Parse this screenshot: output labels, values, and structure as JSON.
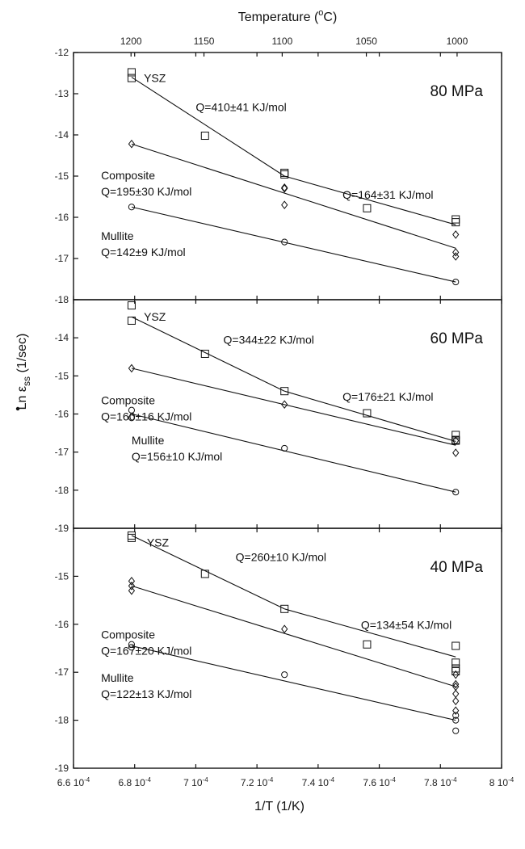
{
  "chart_data": {
    "type": "scatter",
    "top_axis": {
      "label": "Temperature (",
      "label_sup": "o",
      "label_end": "C)",
      "ticks": [
        1200,
        1150,
        1100,
        1050,
        1000
      ]
    },
    "x_axis": {
      "label": "1/T (1/K)",
      "range": [
        0.00066,
        0.0008
      ],
      "ticks": [
        0.00066,
        0.00068,
        0.0007,
        0.00072,
        0.00074,
        0.00076,
        0.00078,
        0.0008
      ],
      "tick_labels": [
        {
          "mant": "6.6",
          "exp": "-4"
        },
        {
          "mant": "6.8",
          "exp": "-4"
        },
        {
          "mant": "7",
          "exp": "-4"
        },
        {
          "mant": "7.2",
          "exp": "-4"
        },
        {
          "mant": "7.4",
          "exp": "-4"
        },
        {
          "mant": "7.6",
          "exp": "-4"
        },
        {
          "mant": "7.8",
          "exp": "-4"
        },
        {
          "mant": "8",
          "exp": "-4"
        }
      ]
    },
    "y_axis": {
      "label_prefix": "Ln ",
      "label_symbol": "ε",
      "label_sub": "ss",
      "label_suffix": " (1/sec)"
    },
    "panels": [
      {
        "label": "80 MPa",
        "ylim": [
          -18,
          -12
        ],
        "yticks": [
          -12,
          -13,
          -14,
          -15,
          -16,
          -17,
          -18
        ],
        "series": [
          {
            "name": "YSZ",
            "marker": "square",
            "points": [
              [
                0.000679,
                -12.48
              ],
              [
                0.000679,
                -12.62
              ],
              [
                0.000703,
                -14.02
              ],
              [
                0.000729,
                -14.92
              ],
              [
                0.000729,
                -14.96
              ],
              [
                0.000756,
                -15.78
              ],
              [
                0.000785,
                -16.05
              ],
              [
                0.000785,
                -16.12
              ]
            ],
            "fits": [
              [
                [
                  0.000679,
                  -12.6
                ],
                [
                  0.000729,
                  -15.0
                ]
              ],
              [
                [
                  0.000729,
                  -15.0
                ],
                [
                  0.000785,
                  -16.18
                ]
              ]
            ]
          },
          {
            "name": "Composite",
            "marker": "diamond",
            "points": [
              [
                0.000679,
                -14.22
              ],
              [
                0.000729,
                -15.28
              ],
              [
                0.000729,
                -15.3
              ],
              [
                0.000729,
                -15.7
              ],
              [
                0.000785,
                -16.42
              ],
              [
                0.000785,
                -16.85
              ],
              [
                0.000785,
                -16.95
              ]
            ],
            "fits": [
              [
                [
                  0.000679,
                  -14.22
                ],
                [
                  0.000785,
                  -16.75
                ]
              ]
            ]
          },
          {
            "name": "Mullite",
            "marker": "circle",
            "points": [
              [
                0.000679,
                -15.75
              ],
              [
                0.000729,
                -16.6
              ],
              [
                0.000785,
                -17.57
              ]
            ],
            "fits": [
              [
                [
                  0.000679,
                  -15.75
                ],
                [
                  0.000785,
                  -17.57
                ]
              ]
            ]
          }
        ],
        "annotations": [
          {
            "lines": [
              "YSZ"
            ],
            "x": 0.000683,
            "y": -12.72
          },
          {
            "lines": [
              "Q=410±41  KJ/mol"
            ],
            "x": 0.0007,
            "y": -13.42
          },
          {
            "lines": [
              "Composite",
              "Q=195±30 KJ/mol"
            ],
            "x": 0.000669,
            "y": -15.08
          },
          {
            "lines": [
              "Q=164±31 KJ/mol"
            ],
            "x": 0.000748,
            "y": -15.55
          },
          {
            "lines": [
              "Mullite",
              "Q=142±9 KJ/mol"
            ],
            "x": 0.000669,
            "y": -16.55
          }
        ]
      },
      {
        "label": "60 MPa",
        "ylim": [
          -19,
          -13
        ],
        "yticks": [
          -14,
          -15,
          -16,
          -17,
          -18,
          -19
        ],
        "series": [
          {
            "name": "YSZ",
            "marker": "square",
            "points": [
              [
                0.000679,
                -13.15
              ],
              [
                0.000679,
                -13.55
              ],
              [
                0.000703,
                -14.42
              ],
              [
                0.000729,
                -15.4
              ],
              [
                0.000756,
                -15.98
              ],
              [
                0.000785,
                -16.55
              ],
              [
                0.000785,
                -16.68
              ],
              [
                0.000785,
                -16.7
              ]
            ],
            "fits": [
              [
                [
                  0.000679,
                  -13.45
                ],
                [
                  0.000729,
                  -15.4
                ]
              ],
              [
                [
                  0.000729,
                  -15.4
                ],
                [
                  0.000785,
                  -16.72
                ]
              ]
            ]
          },
          {
            "name": "Composite",
            "marker": "diamond",
            "points": [
              [
                0.000679,
                -14.8
              ],
              [
                0.000729,
                -15.75
              ],
              [
                0.000785,
                -16.7
              ],
              [
                0.000785,
                -17.02
              ]
            ],
            "fits": [
              [
                [
                  0.000679,
                  -14.8
                ],
                [
                  0.000785,
                  -16.82
                ]
              ]
            ]
          },
          {
            "name": "Mullite",
            "marker": "circle",
            "points": [
              [
                0.000679,
                -15.9
              ],
              [
                0.000679,
                -16.1
              ],
              [
                0.000729,
                -16.9
              ],
              [
                0.000785,
                -18.05
              ]
            ],
            "fits": [
              [
                [
                  0.000679,
                  -16.0
                ],
                [
                  0.000785,
                  -18.05
                ]
              ]
            ]
          }
        ],
        "annotations": [
          {
            "lines": [
              "YSZ"
            ],
            "x": 0.000683,
            "y": -13.55
          },
          {
            "lines": [
              "Q=344±22 KJ/mol"
            ],
            "x": 0.000709,
            "y": -14.16
          },
          {
            "lines": [
              "Composite",
              "Q=160±16 KJ/mol"
            ],
            "x": 0.000669,
            "y": -15.75
          },
          {
            "lines": [
              "Q=176±21 KJ/mol"
            ],
            "x": 0.000748,
            "y": -15.65
          },
          {
            "lines": [
              "Mullite",
              "Q=156±10 KJ/mol"
            ],
            "x": 0.000679,
            "y": -16.8
          }
        ]
      },
      {
        "label": "40 MPa",
        "ylim": [
          -19,
          -14
        ],
        "yticks": [
          -15,
          -16,
          -17,
          -18,
          -19
        ],
        "series": [
          {
            "name": "YSZ",
            "marker": "square",
            "points": [
              [
                0.000679,
                -14.15
              ],
              [
                0.000679,
                -14.2
              ],
              [
                0.000703,
                -14.95
              ],
              [
                0.000729,
                -15.68
              ],
              [
                0.000756,
                -16.42
              ],
              [
                0.000785,
                -16.45
              ],
              [
                0.000785,
                -16.8
              ],
              [
                0.000785,
                -16.92
              ],
              [
                0.000785,
                -16.98
              ]
            ],
            "fits": [
              [
                [
                  0.000679,
                  -14.15
                ],
                [
                  0.000729,
                  -15.68
                ]
              ],
              [
                [
                  0.000729,
                  -15.68
                ],
                [
                  0.000785,
                  -16.68
                ]
              ]
            ]
          },
          {
            "name": "Composite",
            "marker": "diamond",
            "points": [
              [
                0.000679,
                -15.1
              ],
              [
                0.000679,
                -15.2
              ],
              [
                0.000679,
                -15.3
              ],
              [
                0.000729,
                -16.1
              ],
              [
                0.000785,
                -17.05
              ],
              [
                0.000785,
                -17.25
              ],
              [
                0.000785,
                -17.3
              ],
              [
                0.000785,
                -17.45
              ],
              [
                0.000785,
                -17.6
              ],
              [
                0.000785,
                -17.8
              ]
            ],
            "fits": [
              [
                [
                  0.000679,
                  -15.2
                ],
                [
                  0.000785,
                  -17.3
                ]
              ]
            ]
          },
          {
            "name": "Mullite",
            "marker": "circle",
            "points": [
              [
                0.000679,
                -16.42
              ],
              [
                0.000679,
                -16.48
              ],
              [
                0.000729,
                -17.05
              ],
              [
                0.000785,
                -17.9
              ],
              [
                0.000785,
                -18.0
              ],
              [
                0.000785,
                -18.22
              ]
            ],
            "fits": [
              [
                [
                  0.000679,
                  -16.45
                ],
                [
                  0.000785,
                  -18.0
                ]
              ]
            ]
          }
        ],
        "annotations": [
          {
            "lines": [
              "YSZ"
            ],
            "x": 0.000684,
            "y": -14.38
          },
          {
            "lines": [
              "Q=260±10 KJ/mol"
            ],
            "x": 0.000713,
            "y": -14.68
          },
          {
            "lines": [
              "Composite",
              "Q=167±20 KJ/mol"
            ],
            "x": 0.000669,
            "y": -16.3
          },
          {
            "lines": [
              "Q=134±54 KJ/mol"
            ],
            "x": 0.000754,
            "y": -16.1
          },
          {
            "lines": [
              "Mullite",
              "Q=122±13 KJ/mol"
            ],
            "x": 0.000669,
            "y": -17.2
          }
        ]
      }
    ]
  }
}
